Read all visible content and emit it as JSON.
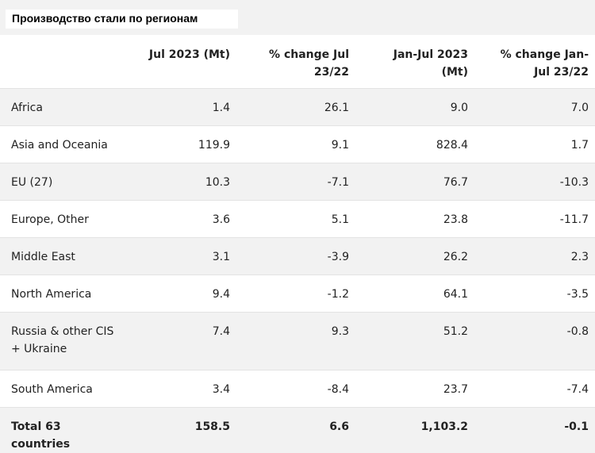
{
  "title": "Производство стали по регионам",
  "columns": [
    "",
    "Jul 2023 (Mt)",
    "% change Jul 23/22",
    "Jan-Jul 2023 (Mt)",
    "% change Jan-Jul 23/22"
  ],
  "rows": [
    {
      "region": "Africa",
      "jul": "1.4",
      "jul_change": "26.1",
      "janjul": "9.0",
      "janjul_change": "7.0"
    },
    {
      "region": "Asia and Oceania",
      "jul": "119.9",
      "jul_change": "9.1",
      "janjul": "828.4",
      "janjul_change": "1.7"
    },
    {
      "region": "EU (27)",
      "jul": "10.3",
      "jul_change": "-7.1",
      "janjul": "76.7",
      "janjul_change": "-10.3"
    },
    {
      "region": "Europe, Other",
      "jul": "3.6",
      "jul_change": "5.1",
      "janjul": "23.8",
      "janjul_change": "-11.7"
    },
    {
      "region": "Middle East",
      "jul": "3.1",
      "jul_change": "-3.9",
      "janjul": "26.2",
      "janjul_change": "2.3"
    },
    {
      "region": "North America",
      "jul": "9.4",
      "jul_change": "-1.2",
      "janjul": "64.1",
      "janjul_change": "-3.5"
    },
    {
      "region": "Russia & other CIS + Ukraine",
      "jul": "7.4",
      "jul_change": "9.3",
      "janjul": "51.2",
      "janjul_change": "-0.8"
    },
    {
      "region": "South America",
      "jul": "3.4",
      "jul_change": "-8.4",
      "janjul": "23.7",
      "janjul_change": "-7.4"
    }
  ],
  "total": {
    "region": "Total 63 countries",
    "jul": "158.5",
    "jul_change": "6.6",
    "janjul": "1,103.2",
    "janjul_change": "-0.1"
  }
}
